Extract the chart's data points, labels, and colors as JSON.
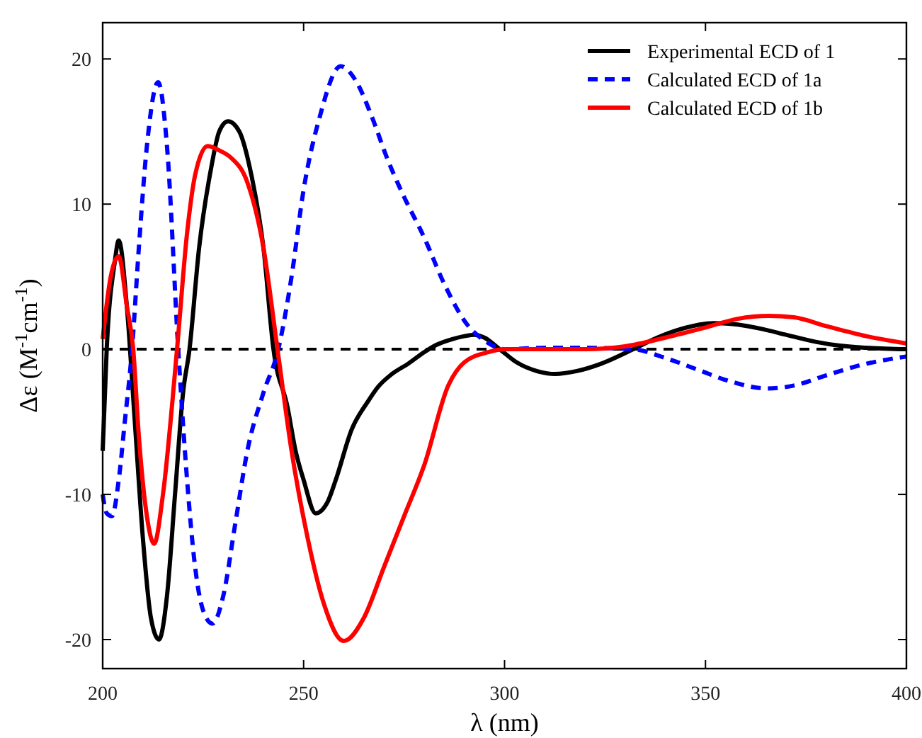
{
  "chart_data": {
    "type": "line",
    "xlabel": "λ (nm)",
    "ylabel": "Δε (M$^{-1}$cm$^{-1}$)",
    "xlim": [
      200,
      400
    ],
    "ylim": [
      -22,
      22.5
    ],
    "xticks": [
      200,
      250,
      300,
      350,
      400
    ],
    "yticks": [
      -20,
      -10,
      0,
      10,
      20
    ],
    "legend": "top right",
    "grid": false,
    "ref_lines": [
      {
        "axis": "y",
        "value": 0,
        "color": "#000000",
        "line_style": "dashed"
      }
    ],
    "series": [
      {
        "name": "Experimental ECD of 1",
        "color": "#000000",
        "line_style": "solid",
        "x": [
          200,
          201,
          203,
          204,
          206,
          208,
          210,
          212,
          214,
          216,
          218,
          220,
          221.6,
          224,
          227,
          229,
          231.2,
          234,
          237,
          240,
          242.5,
          246,
          248,
          250,
          253,
          256,
          258,
          262,
          266,
          268.5,
          272,
          276,
          280,
          283,
          287,
          290,
          292.4,
          295,
          298.8,
          303,
          308,
          312.5,
          318,
          324,
          332,
          338,
          344,
          352,
          358,
          364,
          370,
          376,
          382,
          390,
          400
        ],
        "values": [
          -7,
          0,
          6,
          7.5,
          3,
          -5,
          -13,
          -18.5,
          -20,
          -17,
          -10,
          -3,
          0,
          7,
          12.5,
          15,
          15.7,
          15,
          12,
          7,
          0,
          -4,
          -7,
          -9,
          -11.3,
          -10.5,
          -9,
          -5.5,
          -3.6,
          -2.6,
          -1.7,
          -1,
          -0.2,
          0.3,
          0.7,
          0.9,
          1,
          0.8,
          0,
          -0.9,
          -1.5,
          -1.7,
          -1.5,
          -1,
          0,
          0.8,
          1.4,
          1.8,
          1.7,
          1.4,
          1,
          0.6,
          0.3,
          0.1,
          0
        ]
      },
      {
        "name": "Calculated ECD of 1a",
        "color": "#0000ff",
        "line_style": "dashed",
        "x": [
          200,
          201,
          202.3,
          204,
          205.5,
          207.3,
          209,
          211,
          213.8,
          216,
          218.8,
          221,
          223,
          225,
          227.3,
          230,
          233,
          236,
          240,
          243.7,
          247,
          250,
          254,
          259.2,
          263,
          267,
          271,
          275,
          280,
          285,
          290.7,
          295,
          300.2,
          310,
          320,
          332,
          340,
          348,
          356,
          365.3,
          372,
          380,
          390,
          400
        ],
        "values": [
          -10,
          -11.3,
          -11.5,
          -9,
          -5,
          0,
          7,
          14,
          18.4,
          14,
          0,
          -9,
          -15,
          -18,
          -18.9,
          -17,
          -12,
          -7,
          -3,
          0,
          5,
          11,
          16,
          19.5,
          18.5,
          16,
          13,
          10.5,
          7.7,
          4.5,
          1.7,
          0.6,
          0,
          0.1,
          0.1,
          0,
          -0.6,
          -1.4,
          -2.2,
          -2.7,
          -2.5,
          -1.8,
          -1,
          -0.5
        ]
      },
      {
        "name": "Calculated ECD of 1b",
        "color": "#ff0000",
        "line_style": "solid",
        "x": [
          200,
          202,
          204,
          206,
          207.6,
          209,
          211,
          212.8,
          215,
          218.5,
          221,
          223,
          226.1,
          229,
          231.9,
          236,
          240,
          243.5,
          247,
          251,
          255,
          260,
          265,
          270,
          275,
          280,
          286,
          290,
          296,
          300,
          310,
          320,
          330,
          340,
          350,
          358,
          365.7,
          372,
          380,
          390,
          400
        ],
        "values": [
          0.7,
          5,
          6.4,
          3,
          0,
          -6,
          -11.5,
          -13.4,
          -10,
          0,
          8,
          12,
          14,
          13.7,
          13.2,
          11.5,
          7,
          0,
          -7,
          -13,
          -17.5,
          -20.1,
          -18.5,
          -15,
          -11.5,
          -8,
          -2.5,
          -0.9,
          -0.2,
          0,
          0,
          0,
          0.2,
          0.8,
          1.5,
          2.1,
          2.3,
          2.2,
          1.6,
          0.9,
          0.4
        ]
      }
    ]
  }
}
